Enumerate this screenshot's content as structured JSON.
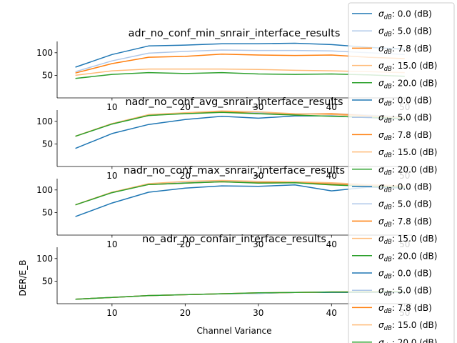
{
  "chart_data": {
    "type": "line",
    "shared_xlabel": "Channel Variance",
    "shared_ylabel": "DER/E_B",
    "xlim": [
      2.5,
      51
    ],
    "ylim": [
      0,
      125
    ],
    "x_ticks": [
      10,
      20,
      30,
      40,
      50
    ],
    "y_ticks": [
      50,
      100
    ],
    "grid": false,
    "legend_placement": "right",
    "legend_entries": [
      {
        "sigma_label": "σ",
        "sub": "dB",
        "value": ": 0.0 (dB)",
        "color": "#1f77b4"
      },
      {
        "sigma_label": "σ",
        "sub": "dB",
        "value": ": 5.0 (dB)",
        "color": "#aec7e8"
      },
      {
        "sigma_label": "σ",
        "sub": "dB",
        "value": ": 7.8 (dB)",
        "color": "#ff7f0e"
      },
      {
        "sigma_label": "σ",
        "sub": "dB",
        "value": ": 15.0 (dB)",
        "color": "#ffbb78"
      },
      {
        "sigma_label": "σ",
        "sub": "dB",
        "value": ": 20.0 (dB)",
        "color": "#2ca02c"
      },
      {
        "sigma_label": "σ",
        "sub": "dB",
        "value": ": 0.0 (dB)",
        "color": "#1f77b4"
      },
      {
        "sigma_label": "σ",
        "sub": "dB",
        "value": ": 5.0 (dB)",
        "color": "#aec7e8"
      },
      {
        "sigma_label": "σ",
        "sub": "dB",
        "value": ": 7.8 (dB)",
        "color": "#ff7f0e"
      },
      {
        "sigma_label": "σ",
        "sub": "dB",
        "value": ": 15.0 (dB)",
        "color": "#ffbb78"
      },
      {
        "sigma_label": "σ",
        "sub": "dB",
        "value": ": 20.0 (dB)",
        "color": "#2ca02c"
      },
      {
        "sigma_label": "σ",
        "sub": "dB",
        "value": ": 0.0 (dB)",
        "color": "#1f77b4"
      },
      {
        "sigma_label": "σ",
        "sub": "dB",
        "value": ": 5.0 (dB)",
        "color": "#aec7e8"
      },
      {
        "sigma_label": "σ",
        "sub": "dB",
        "value": ": 7.8 (dB)",
        "color": "#ff7f0e"
      },
      {
        "sigma_label": "σ",
        "sub": "dB",
        "value": ": 15.0 (dB)",
        "color": "#ffbb78"
      },
      {
        "sigma_label": "σ",
        "sub": "dB",
        "value": ": 20.0 (dB)",
        "color": "#2ca02c"
      },
      {
        "sigma_label": "σ",
        "sub": "dB",
        "value": ": 0.0 (dB)",
        "color": "#1f77b4"
      },
      {
        "sigma_label": "σ",
        "sub": "dB",
        "value": ": 5.0 (dB)",
        "color": "#aec7e8"
      },
      {
        "sigma_label": "σ",
        "sub": "dB",
        "value": ": 7.8 (dB)",
        "color": "#ff7f0e"
      },
      {
        "sigma_label": "σ",
        "sub": "dB",
        "value": ": 15.0 (dB)",
        "color": "#ffbb78"
      },
      {
        "sigma_label": "σ",
        "sub": "dB",
        "value": ": 20.0 (dB)",
        "color": "#2ca02c"
      }
    ],
    "panels": [
      {
        "title": "adr_no_conf_min_snrair_interface_results",
        "x": [
          5,
          10,
          15,
          20,
          25,
          30,
          35,
          40,
          45,
          50
        ],
        "series": [
          {
            "color": "#1f77b4",
            "values": [
              68,
              96,
              115,
              117,
              120,
              120,
              121,
              118,
              112,
              108
            ]
          },
          {
            "color": "#aec7e8",
            "values": [
              58,
              82,
              99,
              103,
              106,
              105,
              105,
              104,
              100,
              96
            ]
          },
          {
            "color": "#ff7f0e",
            "values": [
              55,
              76,
              90,
              92,
              97,
              95,
              94,
              95,
              90,
              87
            ]
          },
          {
            "color": "#ffbb78",
            "values": [
              50,
              60,
              64,
              64,
              64,
              63,
              61,
              60,
              58,
              56
            ]
          },
          {
            "color": "#2ca02c",
            "values": [
              43,
              52,
              56,
              54,
              56,
              53,
              52,
              53,
              51,
              48
            ]
          }
        ]
      },
      {
        "title": "nadr_no_conf_avg_snrair_interface_results",
        "x": [
          5,
          10,
          15,
          20,
          25,
          30,
          35,
          40,
          45,
          50
        ],
        "series": [
          {
            "color": "#1f77b4",
            "values": [
              40,
              73,
              93,
              104,
              111,
              107,
              112,
              112,
              108,
              105
            ]
          },
          {
            "color": "#aec7e8",
            "values": [
              67,
              94,
              114,
              118,
              121,
              119,
              117,
              117,
              114,
              110
            ]
          },
          {
            "color": "#ff7f0e",
            "values": [
              67,
              95,
              113,
              118,
              122,
              117,
              116,
              117,
              112,
              108
            ]
          },
          {
            "color": "#ffbb78",
            "values": [
              67,
              95,
              115,
              119,
              123,
              121,
              117,
              115,
              111,
              108
            ]
          },
          {
            "color": "#2ca02c",
            "values": [
              67,
              94,
              113,
              117,
              120,
              117,
              114,
              111,
              109,
              106
            ]
          }
        ]
      },
      {
        "title": "nadr_no_conf_max_snrair_interface_results",
        "x": [
          5,
          10,
          15,
          20,
          25,
          30,
          35,
          40,
          45,
          50
        ],
        "series": [
          {
            "color": "#1f77b4",
            "values": [
              41,
              71,
              95,
              104,
              109,
              108,
              111,
              98,
              106,
              104
            ]
          },
          {
            "color": "#aec7e8",
            "values": [
              67,
              94,
              113,
              116,
              119,
              117,
              118,
              114,
              110,
              108
            ]
          },
          {
            "color": "#ff7f0e",
            "values": [
              67,
              95,
              112,
              115,
              118,
              116,
              117,
              113,
              109,
              107
            ]
          },
          {
            "color": "#ffbb78",
            "values": [
              67,
              95,
              114,
              119,
              121,
              119,
              118,
              116,
              112,
              109
            ]
          },
          {
            "color": "#2ca02c",
            "values": [
              67,
              94,
              112,
              115,
              118,
              115,
              116,
              111,
              108,
              106
            ]
          }
        ]
      },
      {
        "title": "no_adr_no_confair_interface_results",
        "x": [
          5,
          10,
          15,
          20,
          25,
          30,
          35,
          40,
          45,
          50
        ],
        "series": [
          {
            "color": "#1f77b4",
            "values": [
              10,
              14,
              18,
              20,
              22,
              23,
              25,
              25,
              25,
              26
            ]
          },
          {
            "color": "#aec7e8",
            "values": [
              10,
              14,
              18,
              20,
              22,
              23,
              25,
              26,
              26,
              27
            ]
          },
          {
            "color": "#ff7f0e",
            "values": [
              10,
              14,
              18,
              20,
              22,
              24,
              25,
              26,
              26,
              27
            ]
          },
          {
            "color": "#ffbb78",
            "values": [
              10,
              14,
              18,
              20,
              22,
              24,
              25,
              26,
              27,
              27
            ]
          },
          {
            "color": "#2ca02c",
            "values": [
              10,
              14,
              18,
              20,
              22,
              24,
              25,
              26,
              26,
              27
            ]
          }
        ]
      }
    ]
  }
}
